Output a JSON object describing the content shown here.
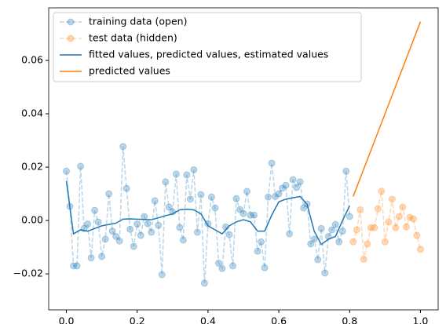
{
  "chart_data": {
    "type": "line",
    "xlim": [
      -0.05,
      1.05
    ],
    "ylim": [
      -0.0335,
      0.0797
    ],
    "xticks": [
      {
        "value": 0,
        "label": "0.0"
      },
      {
        "value": 0.2,
        "label": "0.2"
      },
      {
        "value": 0.4,
        "label": "0.4"
      },
      {
        "value": 0.6,
        "label": "0.6"
      },
      {
        "value": 0.8,
        "label": "0.8"
      },
      {
        "value": 1.0,
        "label": "1.0"
      }
    ],
    "yticks": [
      {
        "value": -0.02,
        "label": "−0.02"
      },
      {
        "value": 0,
        "label": "0.00"
      },
      {
        "value": 0.02,
        "label": "0.02"
      },
      {
        "value": 0.04,
        "label": "0.04"
      },
      {
        "value": 0.06,
        "label": "0.06"
      }
    ],
    "legend": "upper left",
    "series": [
      {
        "name": "training data (open)",
        "color": "#1f77b4",
        "linestyle": "dashed",
        "marker": "o",
        "alpha": 0.3,
        "x": [
          0,
          0.01,
          0.02,
          0.03,
          0.04,
          0.05,
          0.06,
          0.07,
          0.08,
          0.09,
          0.1,
          0.11,
          0.12,
          0.13,
          0.14,
          0.15,
          0.16,
          0.17,
          0.18,
          0.19,
          0.2,
          0.21,
          0.22,
          0.23,
          0.24,
          0.25,
          0.26,
          0.27,
          0.28,
          0.29,
          0.3,
          0.31,
          0.32,
          0.33,
          0.34,
          0.35,
          0.36,
          0.37,
          0.38,
          0.39,
          0.4,
          0.41,
          0.42,
          0.43,
          0.44,
          0.45,
          0.46,
          0.47,
          0.48,
          0.49,
          0.5,
          0.51,
          0.52,
          0.53,
          0.54,
          0.55,
          0.56,
          0.57,
          0.58,
          0.59,
          0.6,
          0.61,
          0.62,
          0.63,
          0.64,
          0.65,
          0.66,
          0.67,
          0.68,
          0.69,
          0.7,
          0.71,
          0.72,
          0.73,
          0.74,
          0.75,
          0.76,
          0.77,
          0.78,
          0.79,
          0.8
        ],
        "values": [
          0.0185,
          0.0053,
          -0.017,
          -0.017,
          0.0203,
          -0.003,
          -0.0013,
          -0.014,
          0.0038,
          -0.0006,
          -0.0135,
          -0.007,
          0.01,
          -0.004,
          -0.006,
          -0.0077,
          0.0277,
          0.012,
          -0.0033,
          -0.0097,
          -0.0013,
          -0.0056,
          0.0015,
          -0.0012,
          -0.0044,
          0.0074,
          -0.0018,
          -0.0203,
          0.0145,
          0.005,
          0.0032,
          0.0174,
          -0.0026,
          -0.0073,
          0.0171,
          0.008,
          0.019,
          -0.0044,
          0.0097,
          -0.0235,
          -0.0012,
          0.0088,
          0.0047,
          -0.016,
          -0.018,
          -0.0024,
          -0.0053,
          -0.017,
          0.0082,
          0.0041,
          0.0026,
          0.0109,
          0.002,
          0.002,
          -0.0115,
          -0.008,
          -0.0177,
          0.0088,
          0.0215,
          0.009,
          0.01,
          0.0121,
          0.0132,
          -0.005,
          0.0153,
          0.0124,
          0.0145,
          0.0047,
          0.0062,
          -0.0088,
          -0.007,
          -0.0147,
          -0.003,
          -0.0197,
          -0.006,
          -0.0035,
          -0.0015,
          -0.008,
          -0.004,
          0.0185,
          0.0015
        ]
      },
      {
        "name": "test data (hidden)",
        "color": "#ff7f0e",
        "linestyle": "dashed",
        "marker": "o",
        "alpha": 0.3,
        "x": [
          0.81,
          0.82,
          0.83,
          0.84,
          0.85,
          0.86,
          0.87,
          0.88,
          0.89,
          0.9,
          0.91,
          0.92,
          0.93,
          0.94,
          0.95,
          0.96,
          0.97,
          0.98,
          0.99,
          1.0
        ],
        "values": [
          -0.008,
          -0.0035,
          0.004,
          -0.0145,
          -0.0088,
          -0.0027,
          -0.0027,
          0.0044,
          0.011,
          -0.008,
          -0.0006,
          0.008,
          -0.0027,
          0.0015,
          0.005,
          -0.0024,
          0.0012,
          0.0006,
          -0.0056,
          -0.0108
        ]
      },
      {
        "name": "fitted values, predicted values, estimated values",
        "color": "#1f77b4",
        "linestyle": "solid",
        "x": [
          0,
          0.02,
          0.04,
          0.06,
          0.08,
          0.1,
          0.12,
          0.14,
          0.16,
          0.18,
          0.2,
          0.22,
          0.24,
          0.26,
          0.28,
          0.3,
          0.32,
          0.34,
          0.36,
          0.38,
          0.4,
          0.42,
          0.44,
          0.46,
          0.48,
          0.5,
          0.52,
          0.54,
          0.56,
          0.58,
          0.6,
          0.62,
          0.64,
          0.66,
          0.68,
          0.7,
          0.72,
          0.74,
          0.76,
          0.78,
          0.8
        ],
        "values": [
          0.0148,
          -0.005,
          -0.0035,
          -0.004,
          -0.003,
          -0.002,
          -0.0015,
          -0.001,
          0.0005,
          0.0006,
          0.0005,
          0.0004,
          0.0003,
          0.001,
          0.0018,
          0.0025,
          0.004,
          0.0042,
          0.004,
          0.0025,
          -0.002,
          -0.0035,
          -0.005,
          -0.002,
          -0.0005,
          0.0003,
          -0.0005,
          -0.004,
          -0.004,
          0.002,
          0.007,
          0.008,
          0.0085,
          0.009,
          0.006,
          -0.004,
          -0.009,
          -0.007,
          -0.006,
          0,
          0.0055
        ]
      },
      {
        "name": "predicted values",
        "color": "#ff7f0e",
        "linestyle": "solid",
        "x": [
          0.81,
          0.9,
          1.0
        ],
        "values": [
          0.009,
          0.04,
          0.0745
        ]
      }
    ]
  }
}
